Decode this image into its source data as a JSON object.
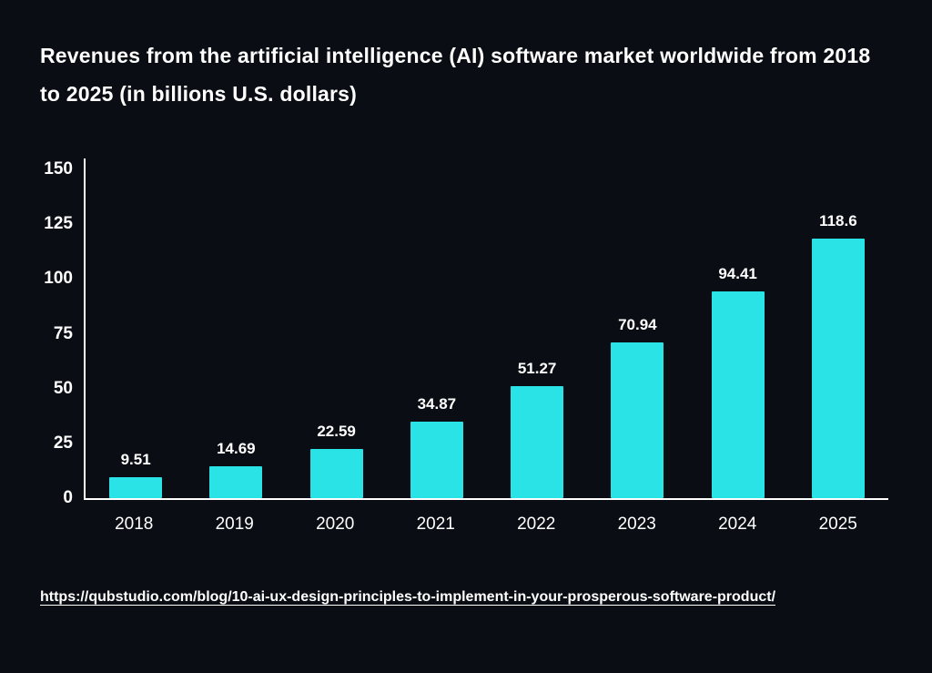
{
  "page": {
    "background": "#0a0e14",
    "text_color": "#ffffff"
  },
  "title": "Revenues from the artificial intelligence (AI) software market worldwide from 2018 to 2025 (in billions U.S. dollars)",
  "source": {
    "text": "https://qubstudio.com/blog/10-ai-ux-design-principles-to-implement-in-your-prosperous-software-product/",
    "href": "https://qubstudio.com/blog/10-ai-ux-design-principles-to-implement-in-your-prosperous-software-product/"
  },
  "chart_data": {
    "type": "bar",
    "title": "Revenues from the artificial intelligence (AI) software market worldwide from 2018 to 2025 (in billions U.S. dollars)",
    "categories": [
      "2018",
      "2019",
      "2020",
      "2021",
      "2022",
      "2023",
      "2024",
      "2025"
    ],
    "values": [
      9.51,
      14.69,
      22.59,
      34.87,
      51.27,
      70.94,
      94.41,
      118.6
    ],
    "value_labels": [
      "9.51",
      "14.69",
      "22.59",
      "34.87",
      "51.27",
      "70.94",
      "94.41",
      "118.6"
    ],
    "xlabel": "",
    "ylabel": "",
    "ylim": [
      0,
      150
    ],
    "yticks": [
      0,
      25,
      50,
      75,
      100,
      125,
      150
    ],
    "bar_color": "#2ae3e6",
    "grid": false,
    "legend": false
  }
}
